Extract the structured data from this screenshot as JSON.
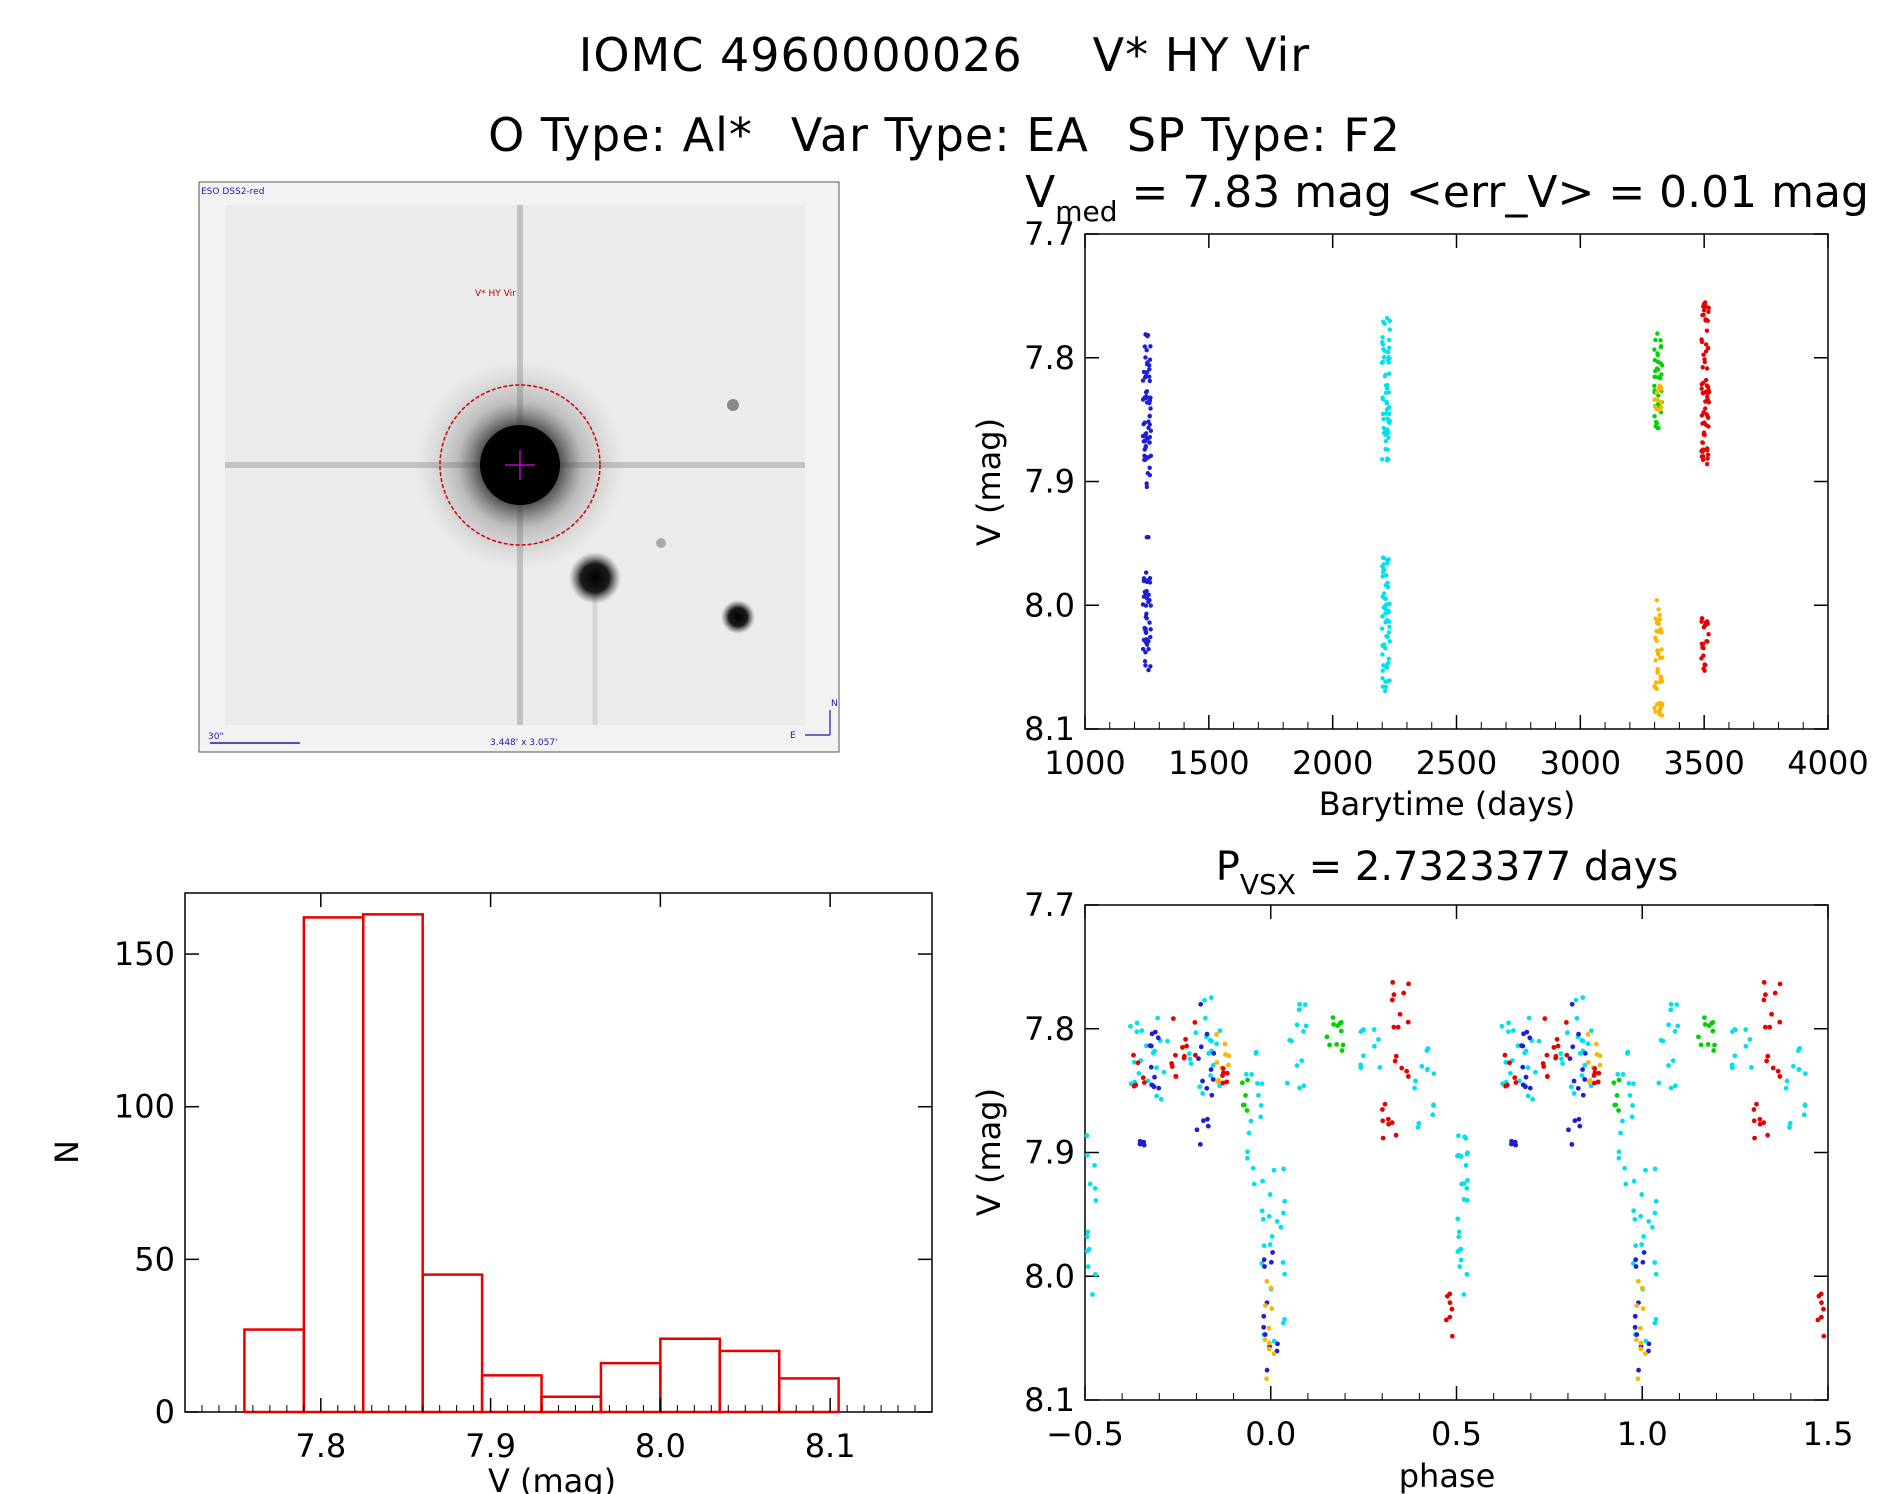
{
  "header": {
    "object_id": "IOMC 4960000026",
    "star_name": "V* HY Vir",
    "o_type": "O Type: Al*",
    "var_type": "Var Type: EA",
    "sp_type": "SP Type: F2"
  },
  "image_panel": {
    "survey_label": "ESO DSS2-red",
    "star_label": "V* HY Vir",
    "scale_label": "30\"",
    "size_label": "3.448' x 3.057'",
    "north_label": "N",
    "east_label": "E"
  },
  "colors": {
    "blue": "#1e1ed2",
    "cyan": "#00e1f0",
    "green": "#00d200",
    "orange": "#ffb400",
    "red": "#e60000",
    "hist": "#e60000"
  },
  "chart_data": [
    {
      "id": "lightcurve",
      "type": "scatter",
      "title_main": "V",
      "title_sub": "med",
      "title_rest": " = 7.83 mag <err_V> = 0.01 mag",
      "xlabel": "Barytime (days)",
      "ylabel": "V (mag)",
      "xlim": [
        1000,
        4000
      ],
      "ylim": [
        8.1,
        7.7
      ],
      "xticks": [
        1000,
        1500,
        2000,
        2500,
        3000,
        3500,
        4000
      ],
      "xtick_labels": [
        "1000",
        "1500",
        "2000",
        "2500",
        "3000",
        "3500",
        "4000"
      ],
      "yticks": [
        7.7,
        7.8,
        7.9,
        8.0,
        8.1
      ],
      "ytick_labels": [
        "7.7",
        "7.8",
        "7.9",
        "8.0",
        "8.1"
      ],
      "series": [
        {
          "name": "blue",
          "x_center": 1250,
          "v_groups": [
            [
              7.78,
              7.905
            ],
            [
              7.945,
              7.945
            ],
            [
              7.97,
              8.055
            ]
          ]
        },
        {
          "name": "cyan",
          "x_center": 2215,
          "v_groups": [
            [
              7.765,
              7.885
            ],
            [
              7.96,
              8.07
            ]
          ]
        },
        {
          "name": "green",
          "x_center": 3315,
          "v_groups": [
            [
              7.78,
              7.86
            ]
          ]
        },
        {
          "name": "orange",
          "x_center": 3315,
          "v_groups": [
            [
              7.82,
              7.845
            ],
            [
              7.995,
              8.09
            ]
          ]
        },
        {
          "name": "red",
          "x_center": 3505,
          "v_groups": [
            [
              7.755,
              7.89
            ],
            [
              8.01,
              8.055
            ]
          ]
        }
      ]
    },
    {
      "id": "histogram",
      "type": "bar",
      "xlabel": "V (mag)",
      "ylabel": "N",
      "xlim": [
        7.72,
        8.16
      ],
      "ylim": [
        0,
        170
      ],
      "bin_edges": [
        7.755,
        7.79,
        7.825,
        7.86,
        7.895,
        7.93,
        7.965,
        8.0,
        8.035,
        8.07,
        8.105
      ],
      "counts": [
        27,
        162,
        163,
        45,
        12,
        5,
        16,
        24,
        20,
        11
      ],
      "xticks": [
        7.8,
        7.9,
        8.0,
        8.1
      ],
      "xtick_labels": [
        "7.8",
        "7.9",
        "8.0",
        "8.1"
      ],
      "yticks": [
        0,
        50,
        100,
        150
      ],
      "ytick_labels": [
        "0",
        "50",
        "100",
        "150"
      ]
    },
    {
      "id": "phased",
      "type": "scatter",
      "title_main": "P",
      "title_sub": "VSX",
      "title_rest": " = 2.7323377 days",
      "xlabel": "phase",
      "ylabel": "V (mag)",
      "xlim": [
        -0.5,
        1.5
      ],
      "ylim": [
        8.1,
        7.7
      ],
      "xticks": [
        -0.5,
        0.0,
        0.5,
        1.0,
        1.5
      ],
      "xtick_labels": [
        "−0.5",
        "0.0",
        "0.5",
        "1.0",
        "1.5"
      ],
      "yticks": [
        7.7,
        7.8,
        7.9,
        8.0,
        8.1
      ],
      "ytick_labels": [
        "7.7",
        "7.8",
        "7.9",
        "8.0",
        "8.1"
      ],
      "period_days": 2.7323377,
      "clusters": [
        {
          "series": "cyan",
          "phase": [
            -0.5,
            -0.47
          ],
          "v": [
            7.88,
            8.03
          ]
        },
        {
          "series": "cyan",
          "phase": [
            -0.38,
            -0.27
          ],
          "v": [
            7.79,
            7.86
          ]
        },
        {
          "series": "red",
          "phase": [
            -0.37,
            -0.34
          ],
          "v": [
            7.82,
            7.85
          ]
        },
        {
          "series": "blue",
          "phase": [
            -0.35,
            -0.3
          ],
          "v": [
            7.8,
            7.85
          ]
        },
        {
          "series": "blue",
          "phase": [
            -0.36,
            -0.34
          ],
          "v": [
            7.89,
            7.895
          ]
        },
        {
          "series": "red",
          "phase": [
            -0.27,
            -0.2
          ],
          "v": [
            7.79,
            7.84
          ]
        },
        {
          "series": "cyan",
          "phase": [
            -0.22,
            -0.13
          ],
          "v": [
            7.77,
            7.86
          ]
        },
        {
          "series": "blue",
          "phase": [
            -0.2,
            -0.15
          ],
          "v": [
            7.78,
            7.9
          ]
        },
        {
          "series": "orange",
          "phase": [
            -0.15,
            -0.11
          ],
          "v": [
            7.8,
            7.85
          ]
        },
        {
          "series": "red",
          "phase": [
            -0.13,
            -0.1
          ],
          "v": [
            7.83,
            7.845
          ]
        },
        {
          "series": "cyan",
          "phase": [
            -0.08,
            -0.02
          ],
          "v": [
            7.81,
            7.93
          ]
        },
        {
          "series": "green",
          "phase": [
            -0.08,
            -0.06
          ],
          "v": [
            7.84,
            7.87
          ]
        },
        {
          "series": "cyan",
          "phase": [
            -0.03,
            0.04
          ],
          "v": [
            7.9,
            8.07
          ]
        },
        {
          "series": "blue",
          "phase": [
            -0.02,
            0.02
          ],
          "v": [
            7.98,
            8.08
          ]
        },
        {
          "series": "orange",
          "phase": [
            -0.02,
            0.01
          ],
          "v": [
            8.0,
            8.09
          ]
        },
        {
          "series": "cyan",
          "phase": [
            0.04,
            0.1
          ],
          "v": [
            7.78,
            7.85
          ]
        },
        {
          "series": "green",
          "phase": [
            0.14,
            0.2
          ],
          "v": [
            7.79,
            7.82
          ]
        },
        {
          "series": "cyan",
          "phase": [
            0.24,
            0.3
          ],
          "v": [
            7.8,
            7.84
          ]
        },
        {
          "series": "red",
          "phase": [
            0.3,
            0.34
          ],
          "v": [
            7.86,
            7.89
          ]
        },
        {
          "series": "red",
          "phase": [
            0.32,
            0.38
          ],
          "v": [
            7.76,
            7.84
          ]
        },
        {
          "series": "cyan",
          "phase": [
            0.38,
            0.44
          ],
          "v": [
            7.81,
            7.88
          ]
        },
        {
          "series": "red",
          "phase": [
            0.47,
            0.5
          ],
          "v": [
            8.01,
            8.05
          ]
        },
        {
          "series": "cyan",
          "phase": [
            0.5,
            0.53
          ],
          "v": [
            7.88,
            8.0
          ]
        }
      ]
    }
  ]
}
